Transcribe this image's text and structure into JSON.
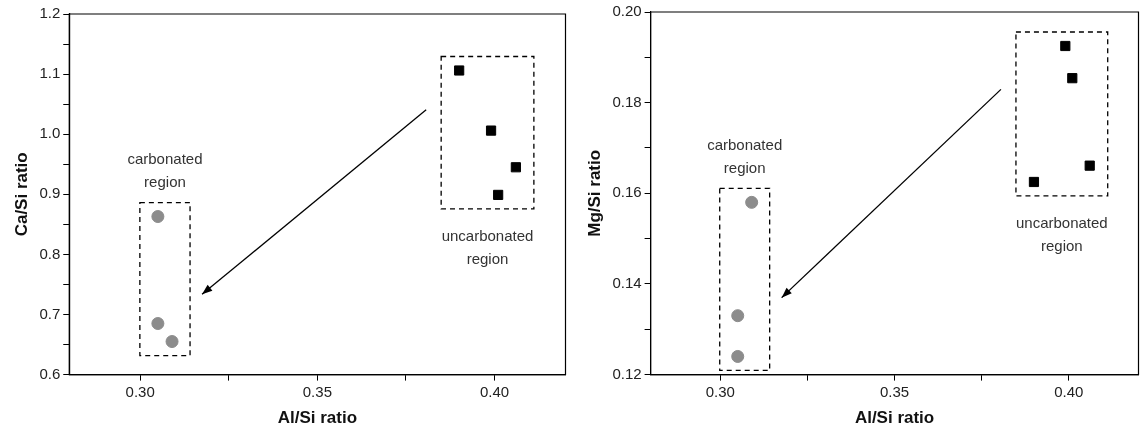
{
  "chart_data": [
    {
      "type": "scatter",
      "xlabel": "Al/Si ratio",
      "ylabel": "Ca/Si ratio",
      "xlim": [
        0.28,
        0.42
      ],
      "ylim": [
        0.6,
        1.2
      ],
      "xticks": [
        {
          "value": 0.3,
          "label": "0.30"
        },
        {
          "value": 0.325,
          "label": null
        },
        {
          "value": 0.35,
          "label": "0.35"
        },
        {
          "value": 0.375,
          "label": null
        },
        {
          "value": 0.4,
          "label": "0.40"
        }
      ],
      "yticks": [
        {
          "value": 0.6,
          "label": "0.6"
        },
        {
          "value": 0.65,
          "label": null
        },
        {
          "value": 0.7,
          "label": "0.7"
        },
        {
          "value": 0.75,
          "label": null
        },
        {
          "value": 0.8,
          "label": "0.8"
        },
        {
          "value": 0.85,
          "label": null
        },
        {
          "value": 0.9,
          "label": "0.9"
        },
        {
          "value": 0.95,
          "label": null
        },
        {
          "value": 1.0,
          "label": "1.0"
        },
        {
          "value": 1.05,
          "label": null
        },
        {
          "value": 1.1,
          "label": "1.1"
        },
        {
          "value": 1.15,
          "label": null
        },
        {
          "value": 1.2,
          "label": "1.2"
        }
      ],
      "grid": false,
      "legend": false,
      "series": [
        {
          "color": "#8c8c8c",
          "marker": "circle",
          "x": [
            0.305,
            0.305,
            0.309
          ],
          "values": [
            0.863,
            0.685,
            0.655
          ]
        },
        {
          "color": "#000000",
          "marker": "square",
          "x": [
            0.39,
            0.399,
            0.406,
            0.401
          ],
          "values": [
            1.106,
            1.006,
            0.945,
            0.899
          ]
        }
      ],
      "annotations": [
        "carbonated region",
        "uncarbonated region"
      ]
    },
    {
      "type": "scatter",
      "xlabel": "Al/Si ratio",
      "ylabel": "Mg/Si ratio",
      "xlim": [
        0.28,
        0.42
      ],
      "ylim": [
        0.12,
        0.2
      ],
      "xticks": [
        {
          "value": 0.3,
          "label": "0.30"
        },
        {
          "value": 0.325,
          "label": null
        },
        {
          "value": 0.35,
          "label": "0.35"
        },
        {
          "value": 0.375,
          "label": null
        },
        {
          "value": 0.4,
          "label": "0.40"
        }
      ],
      "yticks": [
        {
          "value": 0.12,
          "label": "0.12"
        },
        {
          "value": 0.13,
          "label": null
        },
        {
          "value": 0.14,
          "label": "0.14"
        },
        {
          "value": 0.15,
          "label": null
        },
        {
          "value": 0.16,
          "label": "0.16"
        },
        {
          "value": 0.17,
          "label": null
        },
        {
          "value": 0.18,
          "label": "0.18"
        },
        {
          "value": 0.19,
          "label": null
        },
        {
          "value": 0.2,
          "label": "0.20"
        }
      ],
      "grid": false,
      "legend": false,
      "series": [
        {
          "color": "#8c8c8c",
          "marker": "circle",
          "x": [
            0.309,
            0.305,
            0.305
          ],
          "values": [
            0.158,
            0.133,
            0.124
          ]
        },
        {
          "color": "#000000",
          "marker": "square",
          "x": [
            0.399,
            0.401,
            0.406,
            0.39
          ],
          "values": [
            0.1925,
            0.1854,
            0.1661,
            0.1625
          ]
        }
      ],
      "annotations": [
        "carbonated region",
        "uncarbonated region"
      ]
    }
  ]
}
